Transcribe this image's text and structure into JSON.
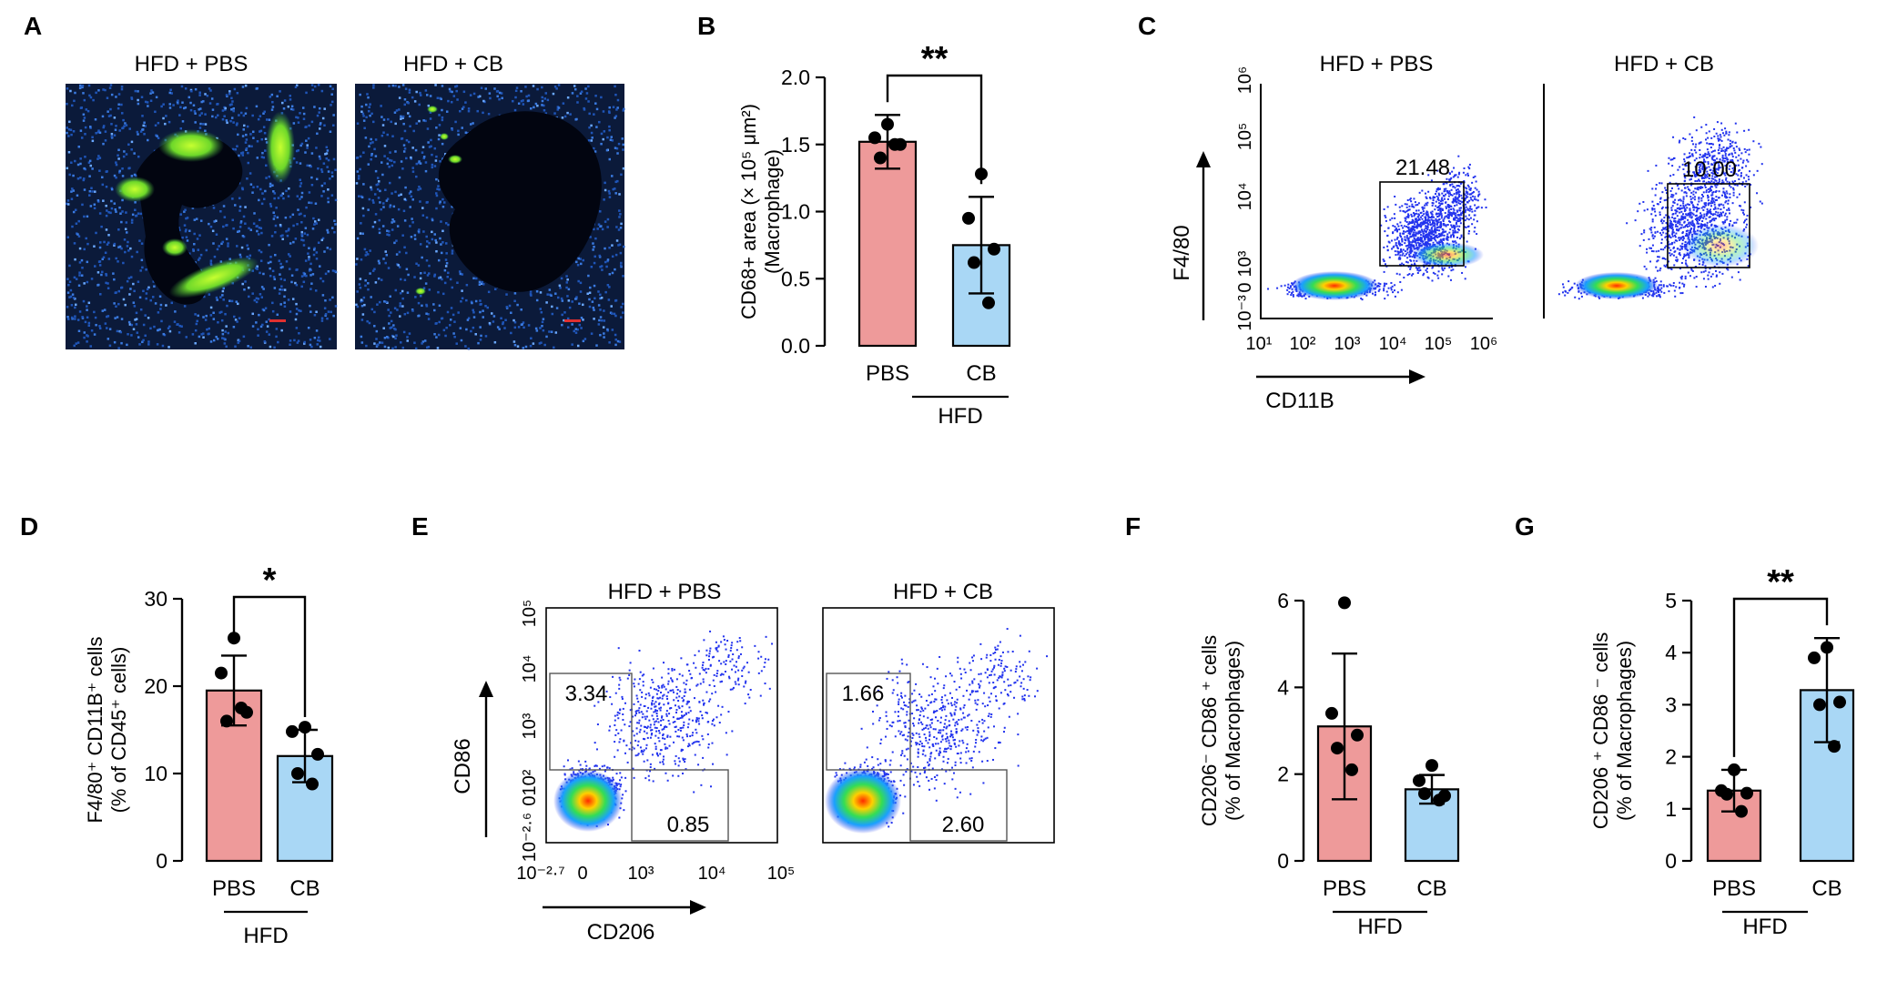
{
  "panels": {
    "A": "A",
    "B": "B",
    "C": "C",
    "D": "D",
    "E": "E",
    "F": "F",
    "G": "G"
  },
  "panel_a": {
    "titles": [
      "HFD + PBS",
      "HFD + CB"
    ]
  },
  "panel_c": {
    "titles": [
      "HFD + PBS",
      "HFD + CB"
    ],
    "gate_values": [
      "21.48",
      "10.00"
    ],
    "y_axis_label": "F4/80",
    "x_axis_label": "CD11B",
    "y_ticks": [
      "10⁶",
      "10⁵",
      "10⁴",
      "10³",
      "0",
      "10⁻³"
    ],
    "x_ticks": [
      "10¹",
      "10²",
      "10³",
      "10⁴",
      "10⁵",
      "10⁶"
    ]
  },
  "panel_e": {
    "titles": [
      "HFD + PBS",
      "HFD + CB"
    ],
    "upper_gate_values": [
      "3.34",
      "1.66"
    ],
    "lower_gate_values": [
      "0.85",
      "2.60"
    ],
    "y_axis_label": "CD86",
    "x_axis_label": "CD206",
    "y_ticks": [
      "10⁵",
      "10⁴",
      "10³",
      "10²",
      "0",
      "10⁻²·⁶"
    ],
    "x_ticks": [
      "10⁻²·⁷",
      "0",
      "10³",
      "10⁴",
      "10⁵"
    ]
  },
  "colors": {
    "pbs_fill": "#ee9a9a",
    "cb_fill": "#a9d7f5",
    "flow_dots": "#2233ee"
  },
  "chart_data": [
    {
      "panel": "B",
      "type": "bar",
      "categories": [
        "PBS",
        "CB"
      ],
      "group_label": "HFD",
      "ylabel": "CD68+ area (× 10⁵ μm²)",
      "ylabel2": "(Macrophage)",
      "ylim": [
        0,
        2.0
      ],
      "yticks": [
        0.0,
        0.5,
        1.0,
        1.5,
        2.0
      ],
      "ytick_labels": [
        "0.0",
        "0.5",
        "1.0",
        "1.5",
        "2.0"
      ],
      "values": [
        1.52,
        0.75
      ],
      "errors": [
        0.2,
        0.36
      ],
      "points": [
        [
          1.65,
          1.55,
          1.5,
          1.4,
          1.5
        ],
        [
          1.28,
          0.95,
          0.72,
          0.62,
          0.32
        ]
      ],
      "significance": "**"
    },
    {
      "panel": "D",
      "type": "bar",
      "categories": [
        "PBS",
        "CB"
      ],
      "group_label": "HFD",
      "ylabel": "F4/80⁺ CD11B⁺ cells",
      "ylabel2": "(% of CD45⁺ cells)",
      "ylim": [
        0,
        30
      ],
      "yticks": [
        0,
        10,
        20,
        30
      ],
      "ytick_labels": [
        "0",
        "10",
        "20",
        "30"
      ],
      "values": [
        19.5,
        12.0
      ],
      "errors": [
        4.0,
        3.0
      ],
      "points": [
        [
          25.5,
          21.5,
          17.0,
          16.0,
          17.5
        ],
        [
          15.3,
          14.8,
          12.2,
          10.0,
          8.8
        ]
      ],
      "significance": "*"
    },
    {
      "panel": "F",
      "type": "bar",
      "categories": [
        "PBS",
        "CB"
      ],
      "group_label": "HFD",
      "ylabel": "CD206⁻ CD86 ⁺ cells",
      "ylabel2": "(% of Macrophages)",
      "ylim": [
        0,
        6
      ],
      "yticks": [
        0,
        2,
        4,
        6
      ],
      "ytick_labels": [
        "0",
        "2",
        "4",
        "6"
      ],
      "values": [
        3.1,
        1.65
      ],
      "errors": [
        1.68,
        0.33
      ],
      "points": [
        [
          5.95,
          3.4,
          2.9,
          2.6,
          2.1
        ],
        [
          2.2,
          1.85,
          1.5,
          1.55,
          1.4
        ]
      ],
      "significance": ""
    },
    {
      "panel": "G",
      "type": "bar",
      "categories": [
        "PBS",
        "CB"
      ],
      "group_label": "HFD",
      "ylabel": "CD206 ⁺ CD86 ⁻ cells",
      "ylabel2": "(% of Macrophages)",
      "ylim": [
        0,
        5
      ],
      "yticks": [
        0,
        1,
        2,
        3,
        4,
        5
      ],
      "ytick_labels": [
        "0",
        "1",
        "2",
        "3",
        "4",
        "5"
      ],
      "values": [
        1.35,
        3.28
      ],
      "errors": [
        0.4,
        1.0
      ],
      "points": [
        [
          1.75,
          1.35,
          1.3,
          1.28,
          0.95
        ],
        [
          4.1,
          3.9,
          3.05,
          3.0,
          2.2
        ]
      ],
      "significance": "**"
    }
  ]
}
